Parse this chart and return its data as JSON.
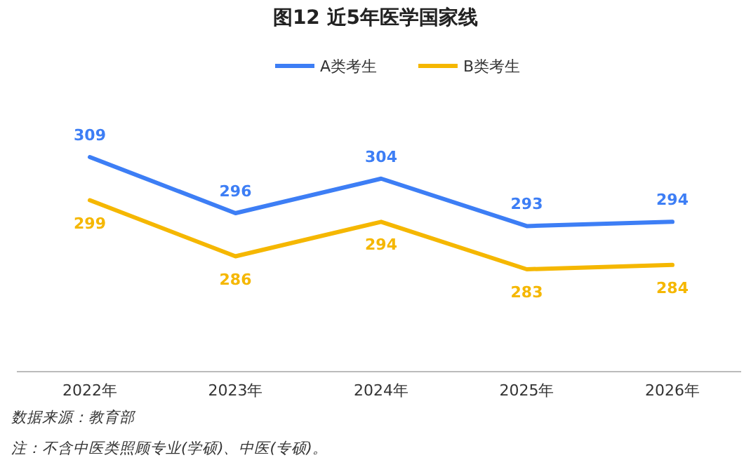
{
  "chart_data": {
    "type": "line",
    "title": "图12  近5年医学国家线",
    "categories": [
      "2022年",
      "2023年",
      "2024年",
      "2025年",
      "2026年"
    ],
    "series": [
      {
        "name": "A类考生",
        "color": "#3d7ef5",
        "values": [
          309,
          296,
          304,
          293,
          294
        ]
      },
      {
        "name": "B类考生",
        "color": "#f5b700",
        "values": [
          299,
          286,
          294,
          283,
          284
        ]
      }
    ],
    "data_labels": true,
    "legend": "top",
    "marker": "none",
    "line_style": "solid",
    "grid": false,
    "annotations": [
      "数据来源：教育部",
      "注：不含中医类照顾专业(学硕)、中医(专硕)。"
    ]
  }
}
